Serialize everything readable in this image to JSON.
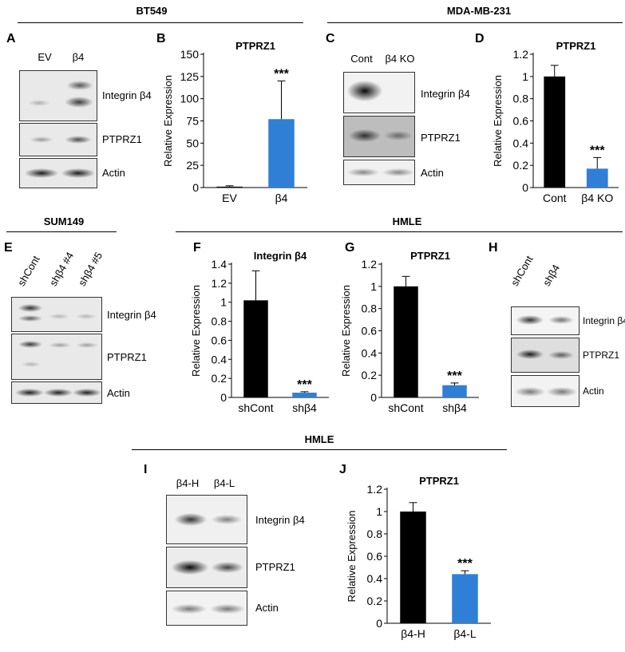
{
  "headers": {
    "bt549": "BT549",
    "mda": "MDA-MB-231",
    "sum149": "SUM149",
    "hmle_top": "HMLE",
    "hmle_bottom": "HMLE"
  },
  "panel_letters": [
    "A",
    "B",
    "C",
    "D",
    "E",
    "F",
    "G",
    "H",
    "I",
    "J"
  ],
  "blots": {
    "A": {
      "lanes": [
        "EV",
        "β4"
      ],
      "rows": [
        "Integrin β4",
        "PTPRZ1",
        "Actin"
      ]
    },
    "C": {
      "lanes": [
        "Cont",
        "β4 KO"
      ],
      "rows": [
        "Integrin β4",
        "PTPRZ1",
        "Actin"
      ]
    },
    "E": {
      "lanes": [
        "shCont",
        "shβ4 #4",
        "shβ4 #5"
      ],
      "rows": [
        "Integrin β4",
        "PTPRZ1",
        "Actin"
      ]
    },
    "H": {
      "lanes": [
        "shCont",
        "shβ4"
      ],
      "rows": [
        "Integrin β4",
        "PTPRZ1",
        "Actin"
      ]
    },
    "I": {
      "lanes": [
        "β4-H",
        "β4-L"
      ],
      "rows": [
        "Integrin β4",
        "PTPRZ1",
        "Actin"
      ]
    }
  },
  "chart_data": [
    {
      "panel": "B",
      "type": "bar",
      "title": "PTPRZ1",
      "ylabel": "Relative Expression",
      "categories": [
        "EV",
        "β4"
      ],
      "values": [
        1,
        77
      ],
      "errors": [
        1,
        43
      ],
      "ylim": [
        0,
        150
      ],
      "yticks": [
        0,
        25,
        50,
        75,
        100,
        125,
        150
      ],
      "colors": [
        "#000000",
        "#2f7fd6"
      ],
      "significance": [
        "",
        "***"
      ]
    },
    {
      "panel": "D",
      "type": "bar",
      "title": "PTPRZ1",
      "ylabel": "Relative Expression",
      "categories": [
        "Cont",
        "β4 KO"
      ],
      "values": [
        1.0,
        0.17
      ],
      "errors": [
        0.1,
        0.1
      ],
      "ylim": [
        0,
        1.2
      ],
      "yticks": [
        0,
        0.2,
        0.4,
        0.6,
        0.8,
        1,
        1.2
      ],
      "colors": [
        "#000000",
        "#2f7fd6"
      ],
      "significance": [
        "",
        "***"
      ]
    },
    {
      "panel": "F",
      "type": "bar",
      "title": "Integrin β4",
      "ylabel": "Relative Expression",
      "categories": [
        "shCont",
        "shβ4"
      ],
      "values": [
        1.02,
        0.05
      ],
      "errors": [
        0.31,
        0.01
      ],
      "ylim": [
        0,
        1.4
      ],
      "yticks": [
        0,
        0.2,
        0.4,
        0.6,
        0.8,
        1,
        1.2,
        1.4
      ],
      "colors": [
        "#000000",
        "#2f7fd6"
      ],
      "significance": [
        "",
        "***"
      ]
    },
    {
      "panel": "G",
      "type": "bar",
      "title": "PTPRZ1",
      "ylabel": "Relative Expression",
      "categories": [
        "shCont",
        "shβ4"
      ],
      "values": [
        1.0,
        0.11
      ],
      "errors": [
        0.09,
        0.02
      ],
      "ylim": [
        0,
        1.2
      ],
      "yticks": [
        0,
        0.2,
        0.4,
        0.6,
        0.8,
        1,
        1.2
      ],
      "colors": [
        "#000000",
        "#2f7fd6"
      ],
      "significance": [
        "",
        "***"
      ]
    },
    {
      "panel": "J",
      "type": "bar",
      "title": "PTPRZ1",
      "ylabel": "Relative Expression",
      "categories": [
        "β4-H",
        "β4-L"
      ],
      "values": [
        1.0,
        0.44
      ],
      "errors": [
        0.08,
        0.03
      ],
      "ylim": [
        0,
        1.2
      ],
      "yticks": [
        0,
        0.2,
        0.4,
        0.6,
        0.8,
        1,
        1.2
      ],
      "colors": [
        "#000000",
        "#2f7fd6"
      ],
      "significance": [
        "",
        "***"
      ]
    }
  ]
}
